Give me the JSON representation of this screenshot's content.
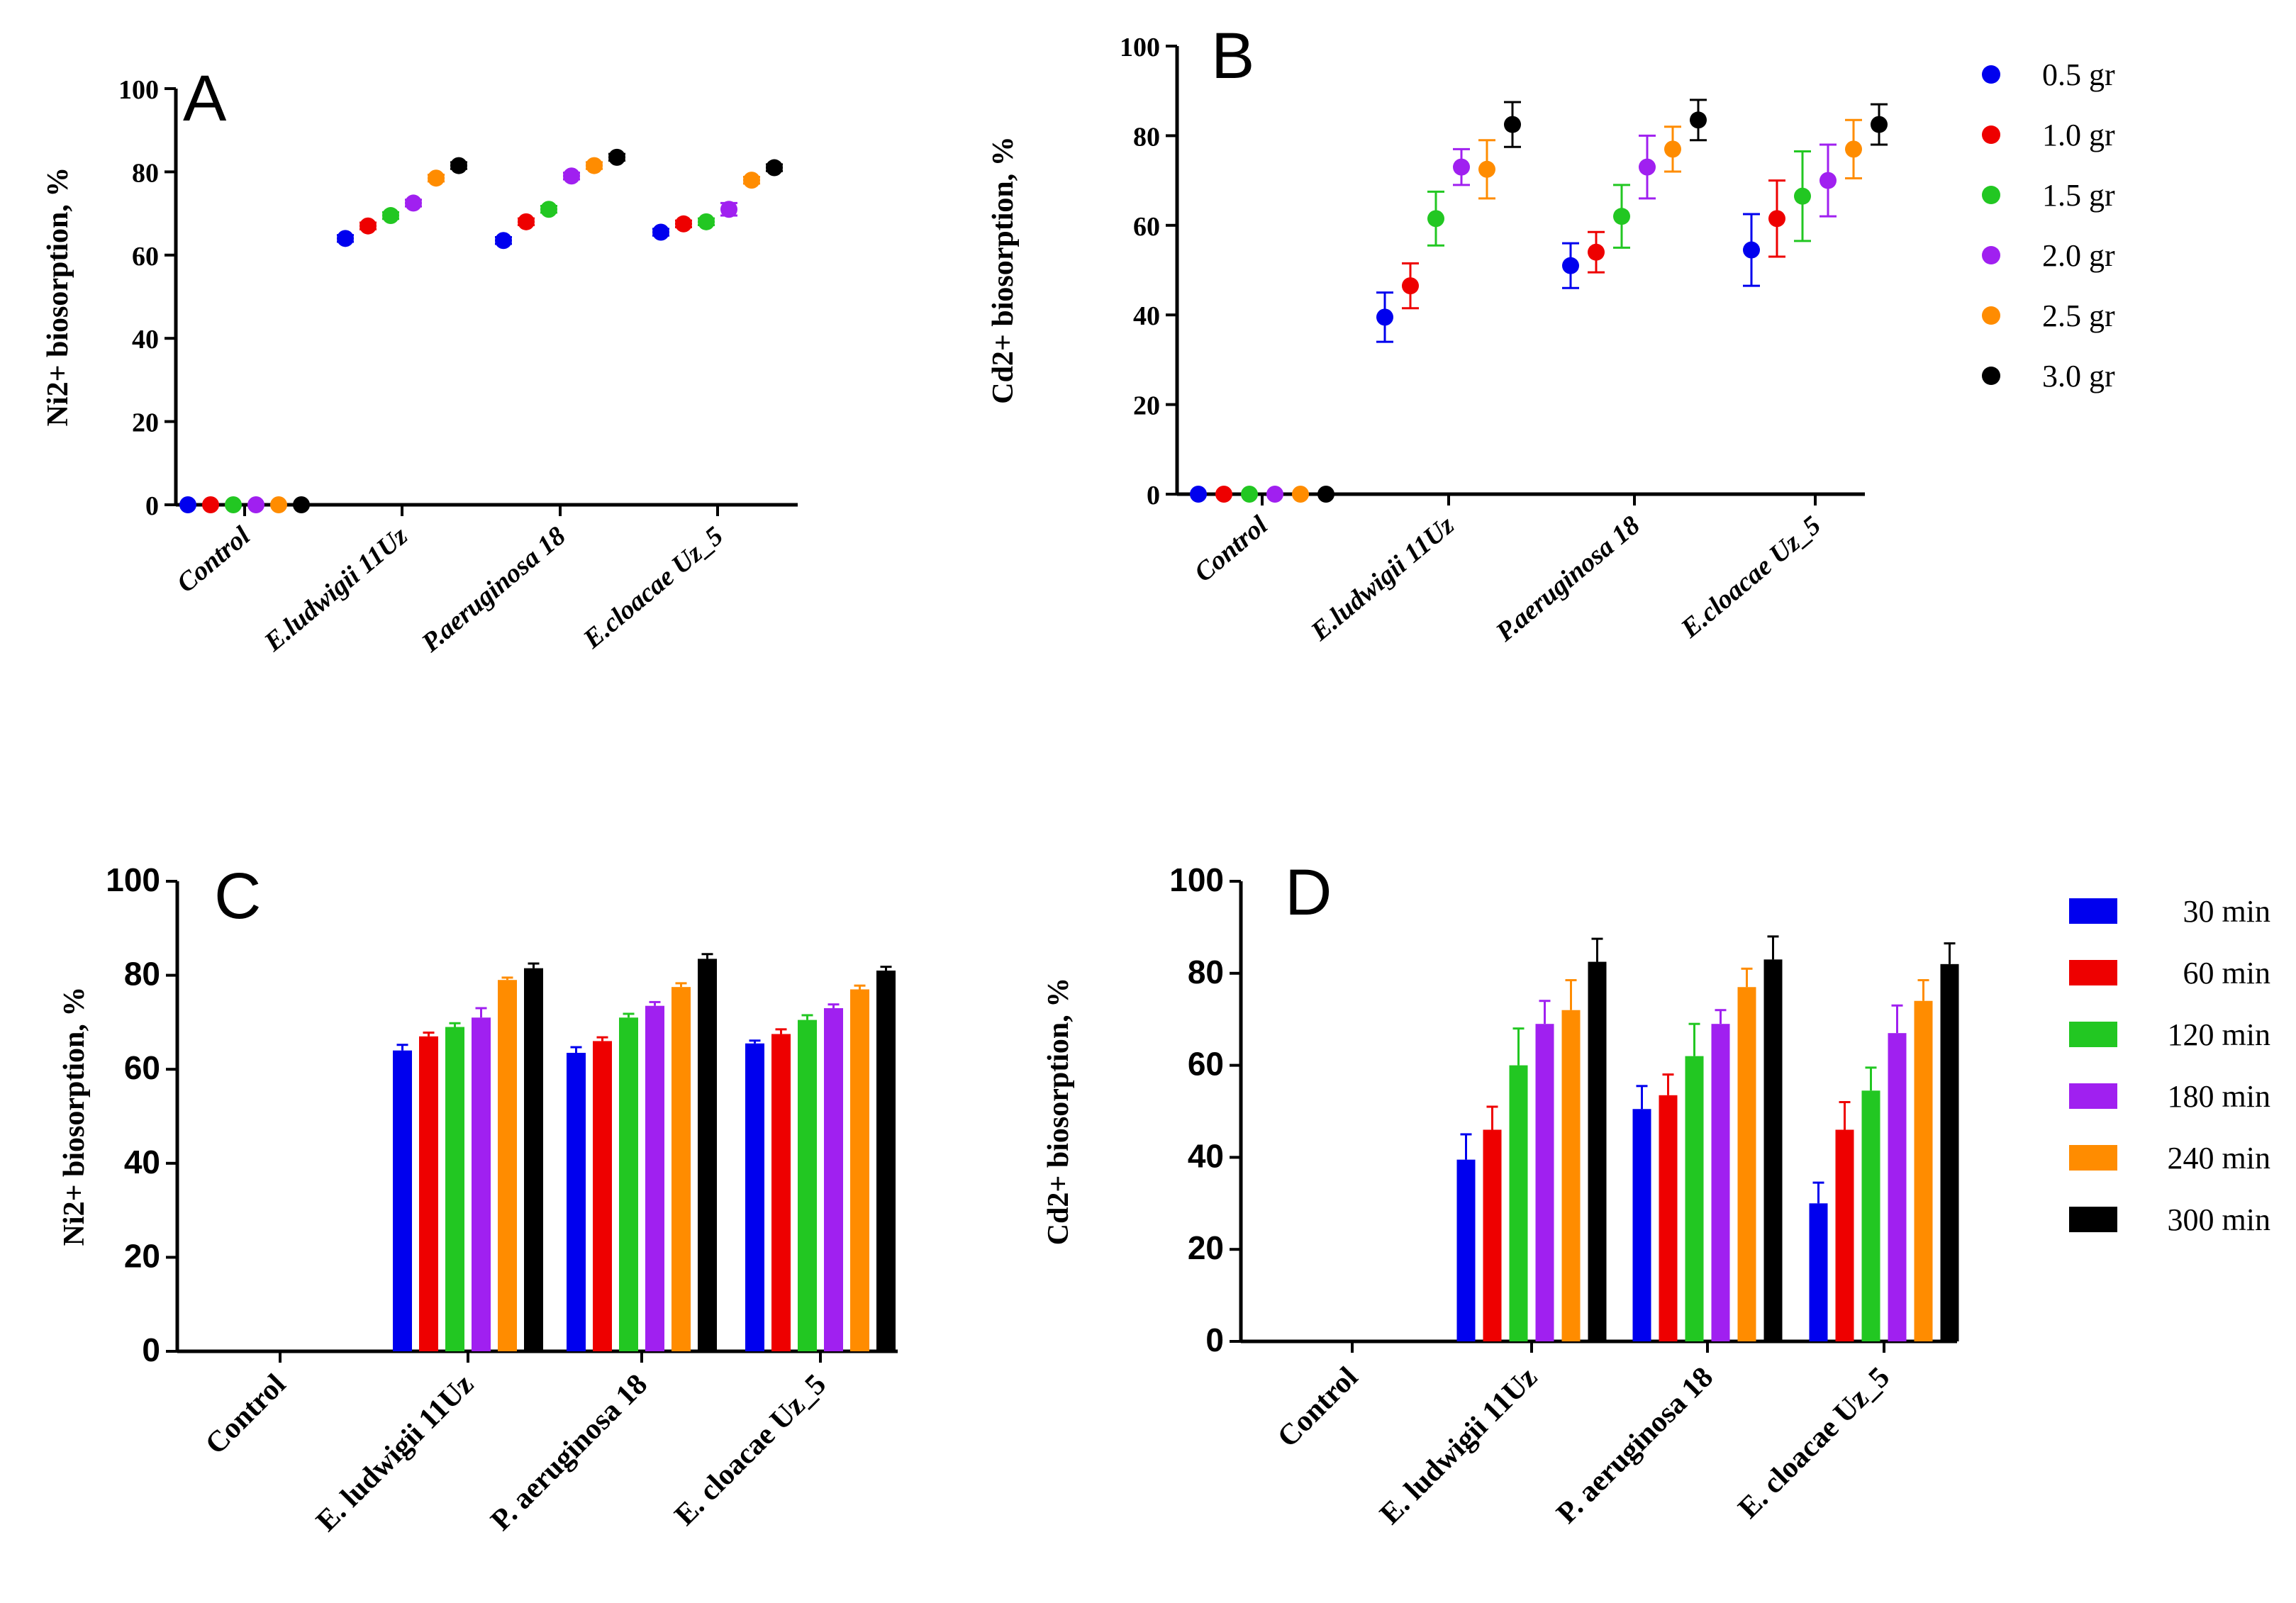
{
  "chart_data": [
    {
      "panel": "A",
      "type": "scatter",
      "ylabel": "Ni2+ biosorption, %",
      "ylim": [
        0,
        100
      ],
      "yticks": [
        0,
        20,
        40,
        60,
        80,
        100
      ],
      "categories": [
        "Control",
        "E.ludwigii 11Uz",
        "P.aeruginosa 18",
        "E.cloacae Uz_5"
      ],
      "series": [
        {
          "name": "0.5 gr",
          "color": "#0000ee",
          "values": [
            0,
            64,
            63.5,
            65.5
          ],
          "errors": [
            0,
            0.8,
            0.8,
            0.8
          ]
        },
        {
          "name": "1.0 gr",
          "color": "#ee0000",
          "values": [
            0,
            67,
            68,
            67.5
          ],
          "errors": [
            0,
            0.8,
            0.8,
            0.8
          ]
        },
        {
          "name": "1.5 gr",
          "color": "#22c722",
          "values": [
            0,
            69.5,
            71,
            68
          ],
          "errors": [
            0,
            0.8,
            0.8,
            0.8
          ]
        },
        {
          "name": "2.0 gr",
          "color": "#a020f0",
          "values": [
            0,
            72.5,
            79,
            71
          ],
          "errors": [
            0,
            0.8,
            0.8,
            1.5
          ]
        },
        {
          "name": "2.5 gr",
          "color": "#ff8c00",
          "values": [
            0,
            78.5,
            81.5,
            78
          ],
          "errors": [
            0,
            0.8,
            0.8,
            0.8
          ]
        },
        {
          "name": "3.0 gr",
          "color": "#000000",
          "values": [
            0,
            81.5,
            83.5,
            81
          ],
          "errors": [
            0,
            0.8,
            0.8,
            0.8
          ]
        }
      ]
    },
    {
      "panel": "B",
      "type": "scatter",
      "ylabel": "Cd2+ biosorption, %",
      "ylim": [
        0,
        100
      ],
      "yticks": [
        0,
        20,
        40,
        60,
        80,
        100
      ],
      "categories": [
        "Control",
        "E.ludwigii 11Uz",
        "P.aeruginosa 18",
        "E.cloacae Uz_5"
      ],
      "legend": {
        "position": "right"
      },
      "series": [
        {
          "name": "0.5 gr",
          "color": "#0000ee",
          "values": [
            0,
            39.5,
            51,
            54.5
          ],
          "errors": [
            0,
            5.5,
            5,
            8
          ]
        },
        {
          "name": "1.0 gr",
          "color": "#ee0000",
          "values": [
            0,
            46.5,
            54,
            61.5
          ],
          "errors": [
            0,
            5,
            4.5,
            8.5
          ]
        },
        {
          "name": "1.5 gr",
          "color": "#22c722",
          "values": [
            0,
            61.5,
            62,
            66.5
          ],
          "errors": [
            0,
            6,
            7,
            10
          ]
        },
        {
          "name": "2.0 gr",
          "color": "#a020f0",
          "values": [
            0,
            73,
            73,
            70
          ],
          "errors": [
            0,
            4,
            7,
            8
          ]
        },
        {
          "name": "2.5 gr",
          "color": "#ff8c00",
          "values": [
            0,
            72.5,
            77,
            77
          ],
          "errors": [
            0,
            6.5,
            5,
            6.5
          ]
        },
        {
          "name": "3.0 gr",
          "color": "#000000",
          "values": [
            0,
            82.5,
            83.5,
            82.5
          ],
          "errors": [
            0,
            5,
            4.5,
            4.5
          ]
        }
      ]
    },
    {
      "panel": "C",
      "type": "bar",
      "ylabel": "Ni2+ biosorption, %",
      "ylim": [
        0,
        100
      ],
      "yticks": [
        0,
        20,
        40,
        60,
        80,
        100
      ],
      "categories": [
        "Control",
        "E. ludwigii 11Uz",
        "P. aeruginosa 18",
        "E. cloacae Uz_5"
      ],
      "series": [
        {
          "name": "30 min",
          "color": "#0000ee",
          "values": [
            0,
            64,
            63.5,
            65.5
          ],
          "errors": [
            0,
            1.2,
            1.2,
            0.6
          ]
        },
        {
          "name": "60 min",
          "color": "#ee0000",
          "values": [
            0,
            67,
            66,
            67.5
          ],
          "errors": [
            0,
            0.8,
            0.8,
            1
          ]
        },
        {
          "name": "120 min",
          "color": "#22c722",
          "values": [
            0,
            69,
            71,
            70.5
          ],
          "errors": [
            0,
            0.8,
            0.8,
            1
          ]
        },
        {
          "name": "180 min",
          "color": "#a020f0",
          "values": [
            0,
            71,
            73.5,
            73
          ],
          "errors": [
            0,
            2,
            0.8,
            0.8
          ]
        },
        {
          "name": "240 min",
          "color": "#ff8c00",
          "values": [
            0,
            79,
            77.5,
            77
          ],
          "errors": [
            0,
            0.5,
            0.8,
            0.8
          ]
        },
        {
          "name": "300 min",
          "color": "#000000",
          "values": [
            0,
            81.5,
            83.5,
            81
          ],
          "errors": [
            0,
            1,
            1,
            0.8
          ]
        }
      ]
    },
    {
      "panel": "D",
      "type": "bar",
      "ylabel": "Cd2+ biosorption, %",
      "ylim": [
        0,
        100
      ],
      "yticks": [
        0,
        20,
        40,
        60,
        80,
        100
      ],
      "categories": [
        "Control",
        "E. ludwigii 11Uz",
        "P. aeruginosa 18",
        "E. cloacae Uz_5"
      ],
      "legend": {
        "position": "right"
      },
      "series": [
        {
          "name": "30 min",
          "color": "#0000ee",
          "values": [
            0,
            39.5,
            50.5,
            30
          ],
          "errors": [
            0,
            5.5,
            5,
            4.5
          ]
        },
        {
          "name": "60 min",
          "color": "#ee0000",
          "values": [
            0,
            46,
            53.5,
            46
          ],
          "errors": [
            0,
            5,
            4.5,
            6
          ]
        },
        {
          "name": "120 min",
          "color": "#22c722",
          "values": [
            0,
            60,
            62,
            54.5
          ],
          "errors": [
            0,
            8,
            7,
            5
          ]
        },
        {
          "name": "180 min",
          "color": "#a020f0",
          "values": [
            0,
            69,
            69,
            67
          ],
          "errors": [
            0,
            5,
            3,
            6
          ]
        },
        {
          "name": "240 min",
          "color": "#ff8c00",
          "values": [
            0,
            72,
            77,
            74
          ],
          "errors": [
            0,
            6.5,
            4,
            4.5
          ]
        },
        {
          "name": "300 min",
          "color": "#000000",
          "values": [
            0,
            82.5,
            83,
            82
          ],
          "errors": [
            0,
            5,
            5,
            4.5
          ]
        }
      ]
    }
  ]
}
